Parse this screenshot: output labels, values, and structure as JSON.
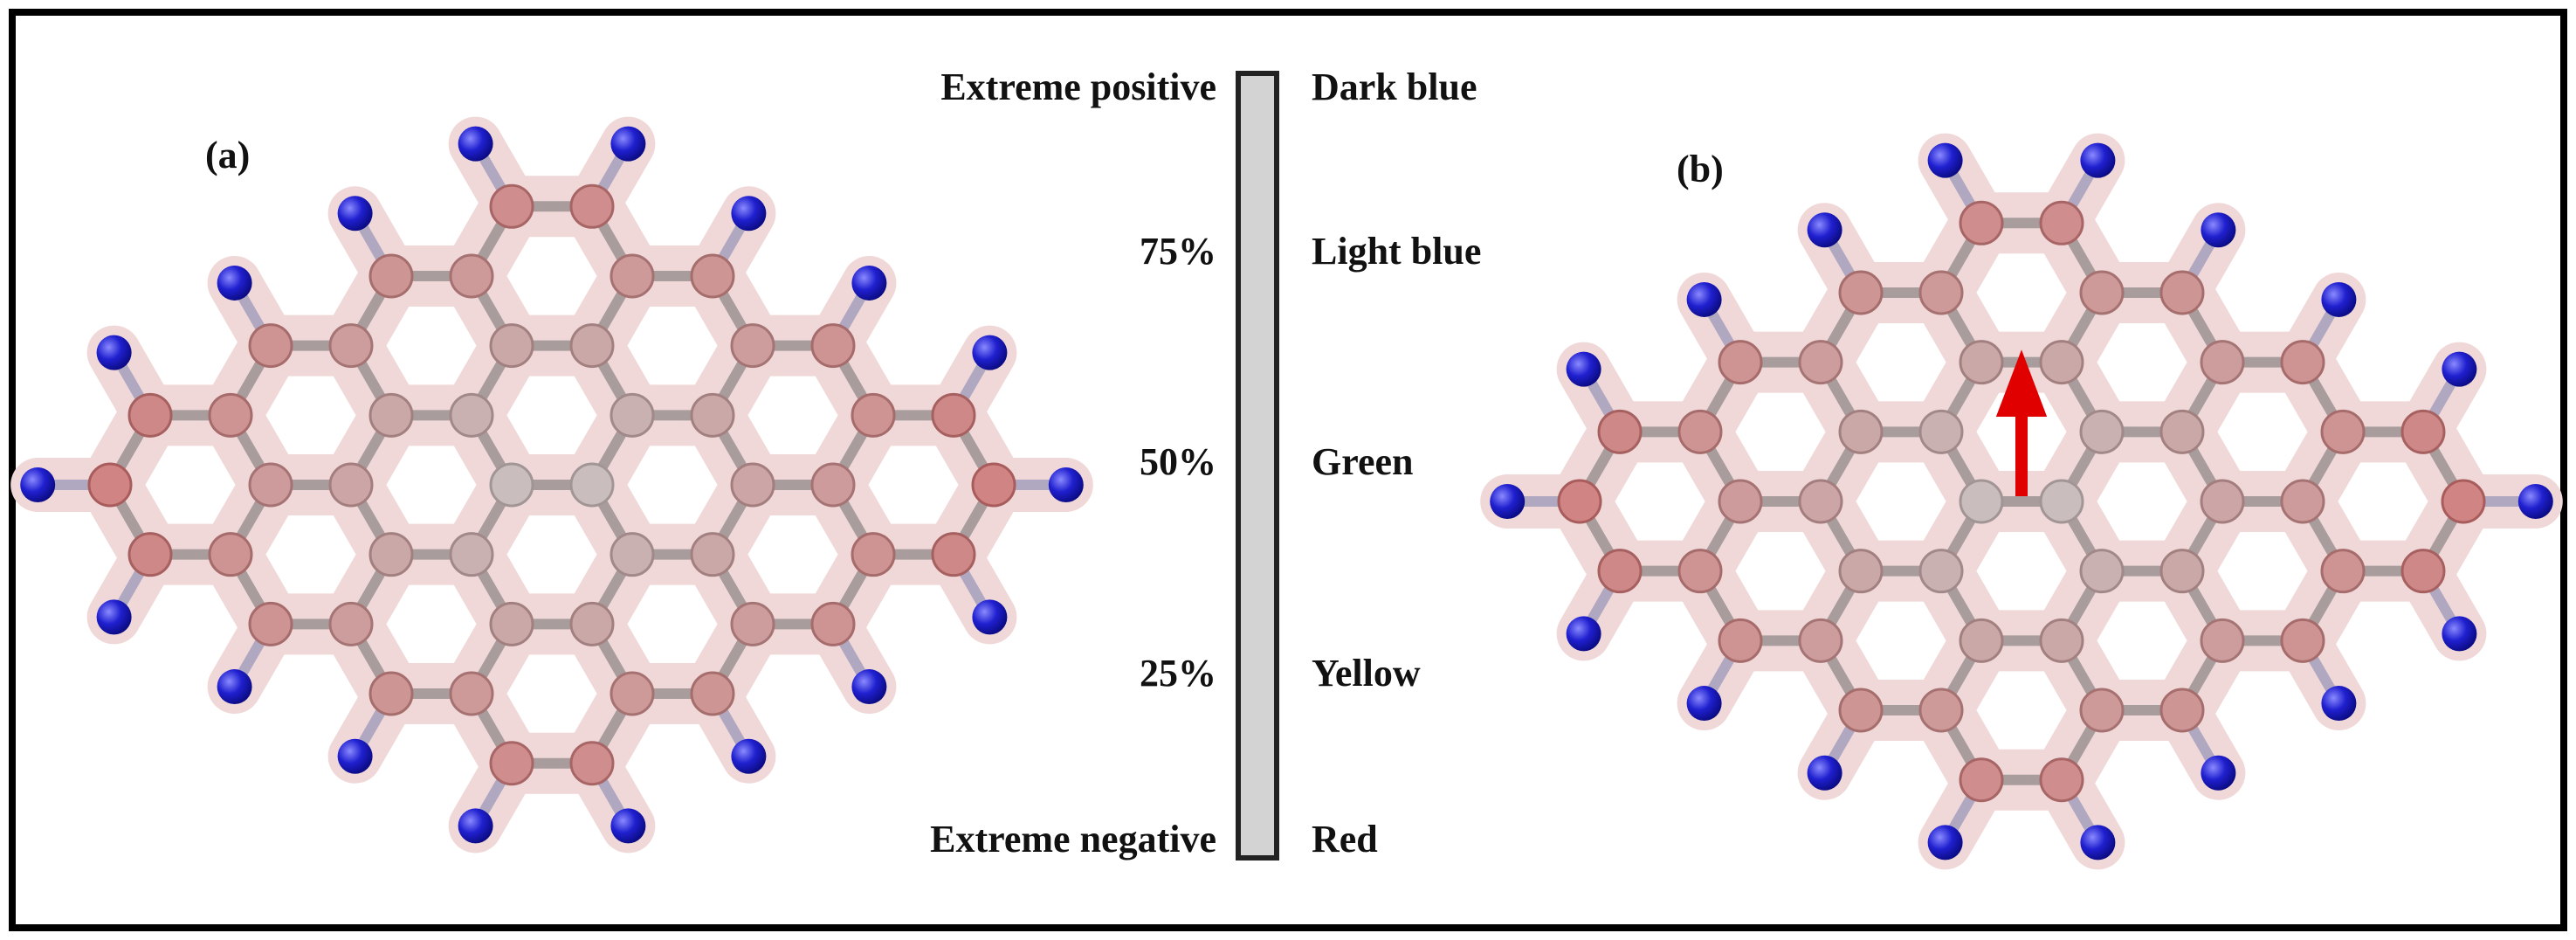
{
  "panels": [
    {
      "label": "(a)"
    },
    {
      "label": "(b)"
    }
  ],
  "scale": {
    "levels": [
      {
        "level": "Extreme positive",
        "color": "Dark blue"
      },
      {
        "level": "75%",
        "color": "Light blue"
      },
      {
        "level": "50%",
        "color": "Green"
      },
      {
        "level": "25%",
        "color": "Yellow"
      },
      {
        "level": "Extreme negative",
        "color": "Red"
      }
    ]
  }
}
